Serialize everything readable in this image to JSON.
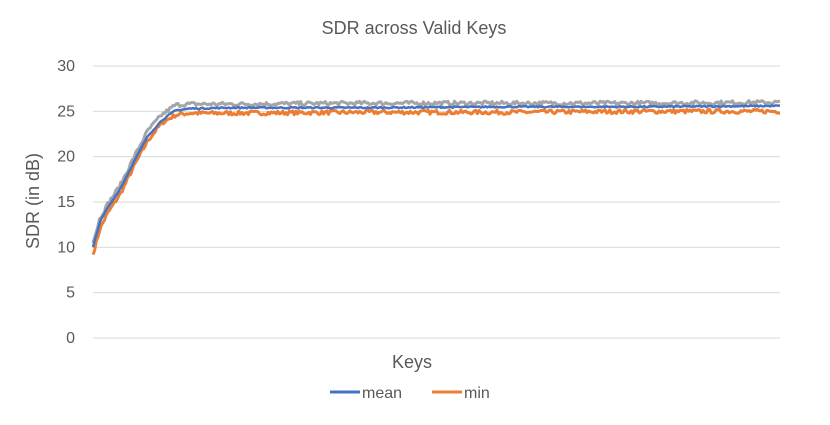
{
  "chart_data": {
    "type": "line",
    "title": "SDR across Valid Keys",
    "xlabel": "Keys",
    "ylabel": "SDR (in dB)",
    "ylim": [
      0,
      30
    ],
    "yticks": [
      "0",
      "5",
      "10",
      "15",
      "20",
      "25",
      "30"
    ],
    "grid": "horizontal",
    "x_tick_labels_shown": false,
    "legend_position": "bottom",
    "series": [
      {
        "name": "mean",
        "color": "#4472C4",
        "x": [
          0,
          0.01,
          0.02,
          0.04,
          0.06,
          0.08,
          0.1,
          0.12,
          0.14,
          0.2,
          0.4,
          0.6,
          0.8,
          1.0
        ],
        "values": [
          10.0,
          12.8,
          14.2,
          16.5,
          19.5,
          22.3,
          24.0,
          25.1,
          25.3,
          25.4,
          25.4,
          25.5,
          25.5,
          25.6
        ]
      },
      {
        "name": "min",
        "color": "#ED7D31",
        "x": [
          0,
          0.01,
          0.02,
          0.04,
          0.06,
          0.08,
          0.1,
          0.12,
          0.14,
          0.2,
          0.4,
          0.6,
          0.8,
          1.0
        ],
        "values": [
          9.2,
          12.0,
          13.6,
          15.9,
          19.0,
          21.8,
          23.7,
          24.6,
          24.8,
          24.8,
          24.9,
          24.9,
          25.0,
          25.0
        ]
      },
      {
        "color": "#A5A5A5",
        "x": [
          0,
          0.01,
          0.02,
          0.04,
          0.06,
          0.08,
          0.1,
          0.12,
          0.14,
          0.2,
          0.4,
          0.6,
          0.8,
          1.0
        ],
        "values": [
          10.5,
          13.2,
          14.6,
          16.9,
          20.0,
          22.9,
          24.6,
          25.7,
          25.8,
          25.8,
          25.9,
          25.9,
          25.9,
          26.0
        ]
      }
    ]
  }
}
